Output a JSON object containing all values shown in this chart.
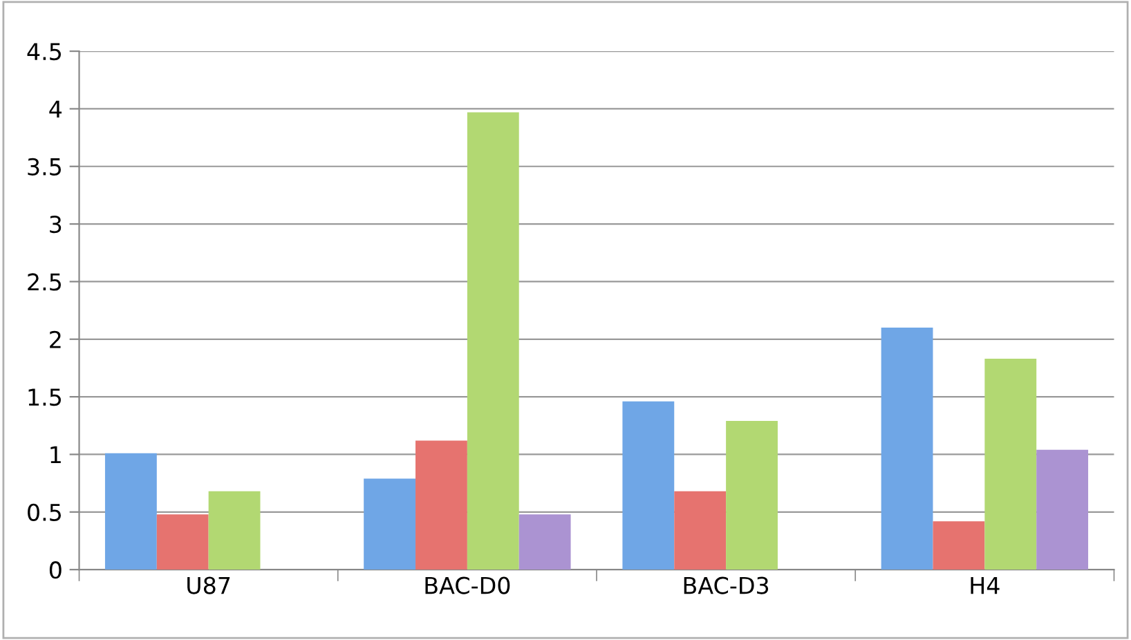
{
  "chart_data": {
    "type": "bar",
    "categories": [
      "U87",
      "BAC-D0",
      "BAC-D3",
      "H4"
    ],
    "series": [
      {
        "color": "#6fa6e6",
        "values": [
          1.01,
          0.79,
          1.46,
          2.1
        ]
      },
      {
        "color": "#e6736f",
        "values": [
          0.48,
          1.12,
          0.68,
          0.42
        ]
      },
      {
        "color": "#b2d872",
        "values": [
          0.68,
          3.97,
          1.29,
          1.83
        ]
      },
      {
        "color": "#ab93d2",
        "values": [
          null,
          0.48,
          null,
          1.04
        ]
      }
    ],
    "ylim": [
      0,
      4.5
    ],
    "yticks": [
      0,
      0.5,
      1,
      1.5,
      2,
      2.5,
      3,
      3.5,
      4,
      4.5
    ],
    "grid": "y",
    "legend": false
  }
}
